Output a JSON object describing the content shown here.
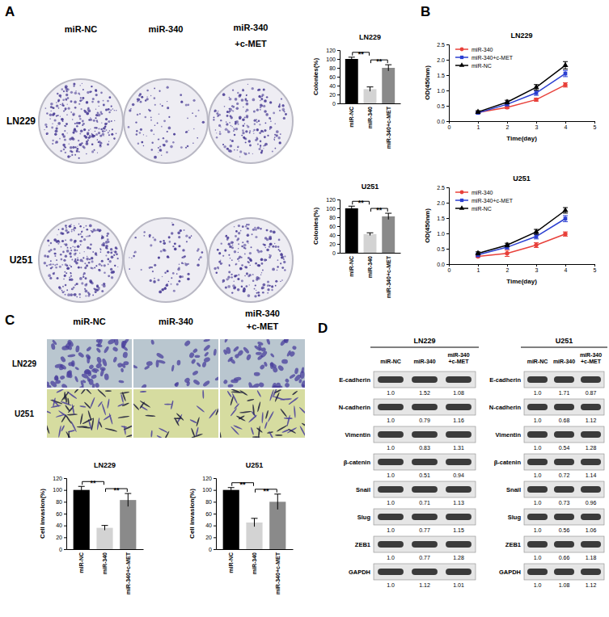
{
  "panel_labels": [
    "A",
    "B",
    "C",
    "D"
  ],
  "colony_images": {
    "columns": [
      [
        "miR-NC"
      ],
      [
        "miR-340"
      ],
      [
        "miR-340",
        "+c-MET"
      ]
    ],
    "rows": [
      "LN229",
      "U251"
    ]
  },
  "invasion_images": {
    "columns": [
      [
        "miR-NC"
      ],
      [
        "miR-340"
      ],
      [
        "miR-340",
        "+c-MET"
      ]
    ],
    "rows": [
      "LN229",
      "U251"
    ]
  },
  "chart_data": [
    {
      "type": "bar",
      "title": "LN229",
      "ylabel": "Colonies(%)",
      "categories": [
        "miR-NC",
        "miR-340",
        "miR-340+c-MET"
      ],
      "values": [
        100,
        32,
        80
      ],
      "errors": [
        4,
        5,
        7
      ],
      "colors": [
        "#000000",
        "#d3d3d3",
        "#8a8a8a"
      ],
      "ylim": [
        0,
        120
      ],
      "yticks": [
        0,
        20,
        40,
        60,
        80,
        100,
        120
      ],
      "annotations": [
        {
          "text": "**",
          "from": "miR-NC",
          "to": "miR-340"
        },
        {
          "text": "**",
          "from": "miR-340",
          "to": "miR-340+c-MET"
        }
      ]
    },
    {
      "type": "bar",
      "title": "U251",
      "ylabel": "Colonies(%)",
      "categories": [
        "miR-NC",
        "miR-340",
        "miR-340+c-MET"
      ],
      "values": [
        100,
        42,
        82
      ],
      "errors": [
        5,
        3,
        7
      ],
      "colors": [
        "#000000",
        "#d3d3d3",
        "#8a8a8a"
      ],
      "ylim": [
        0,
        120
      ],
      "yticks": [
        0,
        20,
        40,
        60,
        80,
        100,
        120
      ],
      "annotations": [
        {
          "text": "**",
          "from": "miR-NC",
          "to": "miR-340"
        },
        {
          "text": "**",
          "from": "miR-340",
          "to": "miR-340+c-MET"
        }
      ]
    },
    {
      "type": "line",
      "title": "LN229",
      "xlabel": "Time(day)",
      "ylabel": "OD(450nm)",
      "x": [
        1,
        2,
        3,
        4
      ],
      "series": [
        {
          "name": "miR-340",
          "color": "#e8403a",
          "marker": "circle",
          "values": [
            0.28,
            0.45,
            0.7,
            1.18
          ],
          "errors": [
            0.03,
            0.04,
            0.05,
            0.07
          ]
        },
        {
          "name": "miR-340+c-MET",
          "color": "#2b3fd1",
          "marker": "square",
          "values": [
            0.27,
            0.55,
            0.92,
            1.55
          ],
          "errors": [
            0.03,
            0.05,
            0.08,
            0.1
          ]
        },
        {
          "name": "miR-NC",
          "color": "#000000",
          "marker": "triangle",
          "values": [
            0.3,
            0.62,
            1.1,
            1.82
          ],
          "errors": [
            0.04,
            0.06,
            0.09,
            0.12
          ]
        }
      ],
      "xlim": [
        0,
        5
      ],
      "xticks": [
        0,
        1,
        2,
        3,
        4,
        5
      ],
      "ylim": [
        0,
        2.5
      ],
      "yticks": [
        {
          "value": 0,
          "label": "0.0"
        },
        0.5,
        {
          "value": 1,
          "label": "1.0"
        },
        1.5,
        {
          "value": 2,
          "label": "2.0"
        },
        2.5
      ],
      "legend": "upper left"
    },
    {
      "type": "line",
      "title": "U251",
      "xlabel": "Time(day)",
      "ylabel": "OD(450nm)",
      "x": [
        1,
        2,
        3,
        4
      ],
      "series": [
        {
          "name": "miR-340",
          "color": "#e8403a",
          "marker": "circle",
          "values": [
            0.25,
            0.35,
            0.62,
            0.98
          ],
          "errors": [
            0.03,
            0.1,
            0.08,
            0.07
          ]
        },
        {
          "name": "miR-340+c-MET",
          "color": "#2b3fd1",
          "marker": "square",
          "values": [
            0.3,
            0.55,
            0.9,
            1.48
          ],
          "errors": [
            0.06,
            0.06,
            0.08,
            0.1
          ]
        },
        {
          "name": "miR-NC",
          "color": "#000000",
          "marker": "triangle",
          "values": [
            0.35,
            0.62,
            1.05,
            1.75
          ],
          "errors": [
            0.05,
            0.06,
            0.08,
            0.09
          ]
        }
      ],
      "xlim": [
        0,
        5
      ],
      "xticks": [
        0,
        1,
        2,
        3,
        4,
        5
      ],
      "ylim": [
        0,
        2.5
      ],
      "yticks": [
        {
          "value": 0,
          "label": "0.0"
        },
        0.5,
        {
          "value": 1,
          "label": "1.0"
        },
        1.5,
        {
          "value": 2,
          "label": "2.0"
        },
        2.5
      ],
      "legend": "upper left"
    },
    {
      "type": "bar",
      "title": "LN229",
      "ylabel": "Cell invasion(%)",
      "categories": [
        "miR-NC",
        "miR-340",
        "miR-340+c-MET"
      ],
      "values": [
        100,
        36,
        83
      ],
      "errors": [
        6,
        4,
        11
      ],
      "colors": [
        "#000000",
        "#d3d3d3",
        "#8a8a8a"
      ],
      "ylim": [
        0,
        120
      ],
      "yticks": [
        0,
        20,
        40,
        60,
        80,
        100,
        120
      ],
      "annotations": [
        {
          "text": "**",
          "from": "miR-NC",
          "to": "miR-340"
        },
        {
          "text": "**",
          "from": "miR-340",
          "to": "miR-340+c-MET"
        }
      ]
    },
    {
      "type": "bar",
      "title": "U251",
      "ylabel": "Cell invasion(%)",
      "categories": [
        "miR-NC",
        "miR-340",
        "miR-340+c-MET"
      ],
      "values": [
        100,
        45,
        80
      ],
      "errors": [
        4,
        7,
        13
      ],
      "colors": [
        "#000000",
        "#d3d3d3",
        "#8a8a8a"
      ],
      "ylim": [
        0,
        120
      ],
      "yticks": [
        0,
        20,
        40,
        60,
        80,
        100,
        120
      ],
      "annotations": [
        {
          "text": "**",
          "from": "miR-NC",
          "to": "miR-340"
        },
        {
          "text": "**",
          "from": "miR-340",
          "to": "miR-340+c-MET"
        }
      ]
    }
  ],
  "blots": [
    {
      "title": "LN229",
      "columns": [
        [
          "miR-NC"
        ],
        [
          "miR-340"
        ],
        [
          "miR-340",
          "+c-MET"
        ]
      ],
      "rows": [
        {
          "label": "E-cadherin",
          "values": [
            "1.0",
            "1.52",
            "1.08"
          ]
        },
        {
          "label": "N-cadherin",
          "values": [
            "1.0",
            "0.79",
            "1.16"
          ]
        },
        {
          "label": "Vimentin",
          "values": [
            "1.0",
            "0.83",
            "1.31"
          ]
        },
        {
          "label": "β-catenin",
          "values": [
            "1.0",
            "0.51",
            "0.94"
          ]
        },
        {
          "label": "Snail",
          "values": [
            "1.0",
            "0.71",
            "1.13"
          ]
        },
        {
          "label": "Slug",
          "values": [
            "1.0",
            "0.77",
            "1.15"
          ]
        },
        {
          "label": "ZEB1",
          "values": [
            "1.0",
            "0.77",
            "1.28"
          ]
        },
        {
          "label": "GAPDH",
          "values": [
            "1.0",
            "1.12",
            "1.01"
          ]
        }
      ]
    },
    {
      "title": "U251",
      "columns": [
        [
          "miR-NC"
        ],
        [
          "miR-340"
        ],
        [
          "miR-340",
          "+c-MET"
        ]
      ],
      "rows": [
        {
          "label": "E-cadherin",
          "values": [
            "1.0",
            "1.71",
            "0.87"
          ]
        },
        {
          "label": "N-cadherin",
          "values": [
            "1.0",
            "0.68",
            "1.12"
          ]
        },
        {
          "label": "Vimentin",
          "values": [
            "1.0",
            "0.54",
            "1.28"
          ]
        },
        {
          "label": "β-catenin",
          "values": [
            "1.0",
            "0.72",
            "1.14"
          ]
        },
        {
          "label": "Snail",
          "values": [
            "1.0",
            "0.73",
            "0.96"
          ]
        },
        {
          "label": "Slug",
          "values": [
            "1.0",
            "0.56",
            "1.06"
          ]
        },
        {
          "label": "ZEB1",
          "values": [
            "1.0",
            "0.66",
            "1.18"
          ]
        },
        {
          "label": "GAPDH",
          "values": [
            "1.0",
            "1.08",
            "1.12"
          ]
        }
      ]
    }
  ]
}
